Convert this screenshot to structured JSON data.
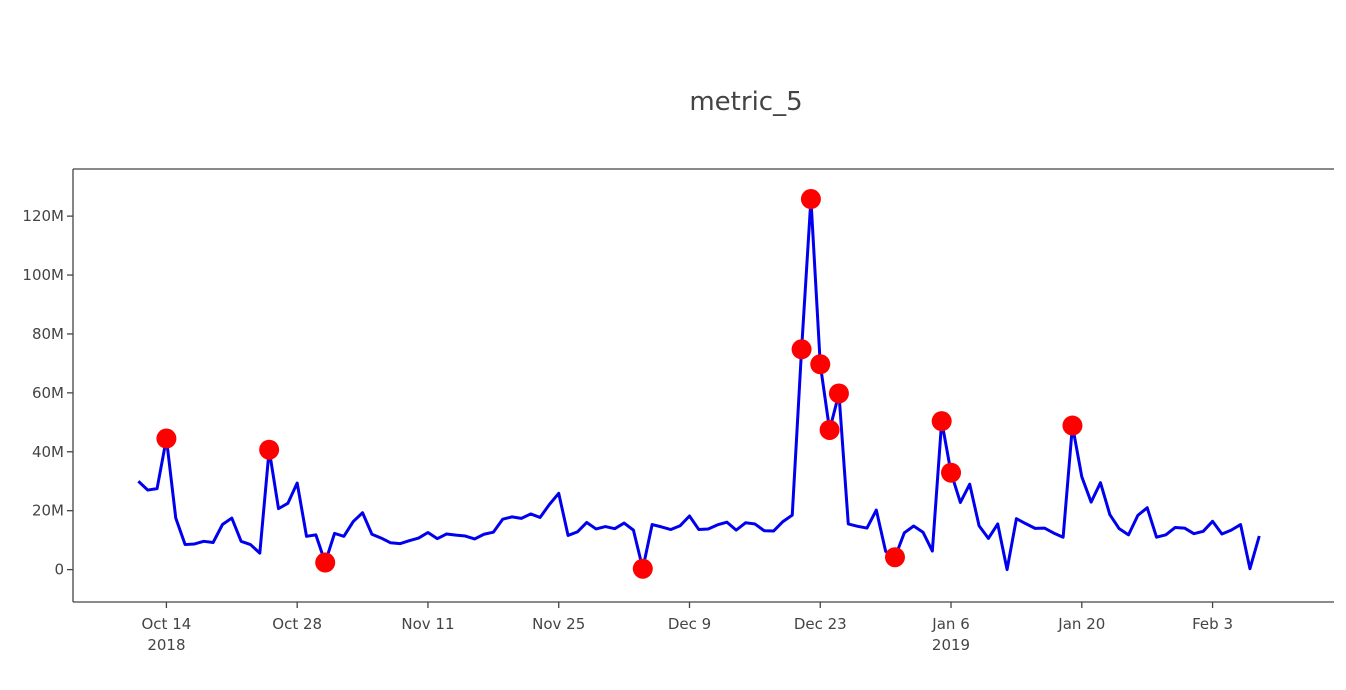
{
  "chart_data": {
    "type": "line",
    "title": "metric_5",
    "xlabel": "",
    "ylabel": "",
    "x_axis_type": "date",
    "xlim": [
      "2018-10-04",
      "2019-02-16"
    ],
    "ylim": [
      -11000000,
      136000000
    ],
    "grid": false,
    "legend": "none",
    "x_ticks": [
      {
        "date": "2018-10-14",
        "label": "Oct 14",
        "sublabel": "2018"
      },
      {
        "date": "2018-10-28",
        "label": "Oct 28",
        "sublabel": ""
      },
      {
        "date": "2018-11-11",
        "label": "Nov 11",
        "sublabel": ""
      },
      {
        "date": "2018-11-25",
        "label": "Nov 25",
        "sublabel": ""
      },
      {
        "date": "2018-12-09",
        "label": "Dec 9",
        "sublabel": ""
      },
      {
        "date": "2018-12-23",
        "label": "Dec 23",
        "sublabel": ""
      },
      {
        "date": "2019-01-06",
        "label": "Jan 6",
        "sublabel": "2019"
      },
      {
        "date": "2019-01-20",
        "label": "Jan 20",
        "sublabel": ""
      },
      {
        "date": "2019-02-03",
        "label": "Feb 3",
        "sublabel": ""
      }
    ],
    "y_ticks": [
      {
        "value": 0,
        "label": "0"
      },
      {
        "value": 20000000,
        "label": "20M"
      },
      {
        "value": 40000000,
        "label": "40M"
      },
      {
        "value": 60000000,
        "label": "60M"
      },
      {
        "value": 80000000,
        "label": "80M"
      },
      {
        "value": 100000000,
        "label": "100M"
      },
      {
        "value": 120000000,
        "label": "120M"
      }
    ],
    "series": [
      {
        "type": "line",
        "color": "#0000ee",
        "start_date": "2018-10-11",
        "y": [
          30000000,
          27000000,
          27500000,
          44500000,
          17500000,
          8500000,
          8700000,
          9600000,
          9200000,
          15300000,
          17500000,
          9600000,
          8500000,
          5600000,
          40700000,
          20700000,
          22500000,
          29400000,
          11300000,
          11800000,
          2400000,
          12300000,
          11300000,
          16300000,
          19300000,
          12000000,
          10700000,
          9100000,
          8800000,
          9800000,
          10700000,
          12600000,
          10500000,
          12100000,
          11700000,
          11400000,
          10400000,
          12000000,
          12700000,
          17100000,
          17900000,
          17400000,
          18900000,
          17700000,
          22100000,
          25900000,
          11600000,
          12800000,
          16000000,
          13800000,
          14600000,
          13900000,
          15800000,
          13400000,
          300000,
          15300000,
          14500000,
          13600000,
          14900000,
          18200000,
          13600000,
          13800000,
          15200000,
          16100000,
          13400000,
          15900000,
          15500000,
          13200000,
          13100000,
          16300000,
          18500000,
          74800000,
          125800000,
          69700000,
          47400000,
          59800000,
          15500000,
          14700000,
          14100000,
          20200000,
          6200000,
          4200000,
          12500000,
          14800000,
          12700000,
          6300000,
          50400000,
          32900000,
          22800000,
          29000000,
          14900000,
          10600000,
          15500000,
          0,
          17300000,
          15600000,
          14000000,
          14100000,
          12400000,
          11000000,
          48900000,
          31500000,
          22900000,
          29500000,
          18700000,
          13900000,
          11800000,
          18400000,
          21000000,
          11000000,
          11800000,
          14300000,
          14100000,
          12200000,
          13000000,
          16400000,
          12100000,
          13400000,
          15300000,
          300000,
          11400000
        ]
      },
      {
        "type": "scatter",
        "color": "#ff0000",
        "points": [
          {
            "x": "2018-10-14",
            "y": 44500000
          },
          {
            "x": "2018-10-25",
            "y": 40700000
          },
          {
            "x": "2018-10-31",
            "y": 2400000
          },
          {
            "x": "2018-12-04",
            "y": 300000
          },
          {
            "x": "2018-12-21",
            "y": 74800000
          },
          {
            "x": "2018-12-22",
            "y": 125800000
          },
          {
            "x": "2018-12-23",
            "y": 69700000
          },
          {
            "x": "2018-12-24",
            "y": 47400000
          },
          {
            "x": "2018-12-25",
            "y": 59800000
          },
          {
            "x": "2018-12-31",
            "y": 4200000
          },
          {
            "x": "2019-01-05",
            "y": 50400000
          },
          {
            "x": "2019-01-06",
            "y": 32900000
          },
          {
            "x": "2019-01-19",
            "y": 48900000
          }
        ]
      }
    ]
  }
}
